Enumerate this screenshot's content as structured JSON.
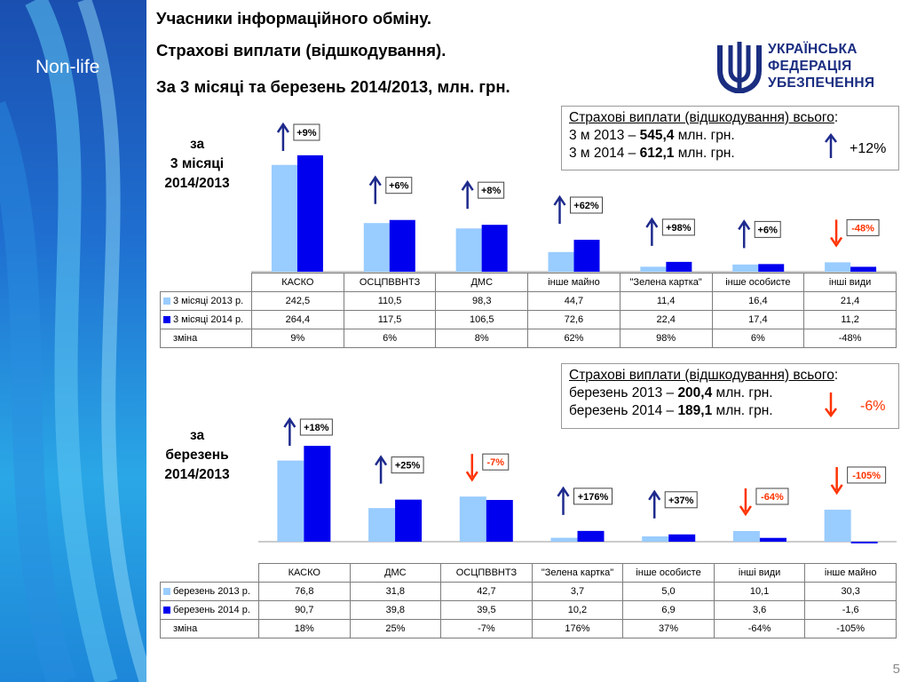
{
  "sidebar": {
    "title": "Non-life"
  },
  "header": {
    "line1": "Учасники інформаційного обміну.",
    "line2": "Страхові виплати (відшкодування).",
    "line3": "За 3 місяці та березень 2014/2013, млн. грн."
  },
  "logo": {
    "line1": "УКРАЇНСЬКА",
    "line2": "ФЕДЕРАЦІЯ",
    "line3": "УБЕЗПЕЧЕННЯ"
  },
  "colors": {
    "series_2013": "#99ccff",
    "series_2014": "#0000ee",
    "up": "#1e2a8c",
    "down": "#ff3300"
  },
  "page_number": "5",
  "chart_data": [
    {
      "type": "bar",
      "side_label": [
        "за",
        "3 місяці",
        "2014/2013"
      ],
      "categories": [
        "КАСКО",
        "ОСЦПВВНТЗ",
        "ДМС",
        "інше майно",
        "\"Зелена картка\"",
        "інше особисте",
        "інші види"
      ],
      "series": [
        {
          "name": "3 місяці 2013 р.",
          "values": [
            242.5,
            110.5,
            98.3,
            44.7,
            11.4,
            16.4,
            21.4
          ],
          "labels": [
            "242,5",
            "110,5",
            "98,3",
            "44,7",
            "11,4",
            "16,4",
            "21,4"
          ]
        },
        {
          "name": "3 місяці 2014 р.",
          "values": [
            264.4,
            117.5,
            106.5,
            72.6,
            22.4,
            17.4,
            11.2
          ],
          "labels": [
            "264,4",
            "117,5",
            "106,5",
            "72,6",
            "22,4",
            "17,4",
            "11,2"
          ]
        }
      ],
      "change_label": "зміна",
      "change": [
        "9%",
        "6%",
        "8%",
        "62%",
        "98%",
        "6%",
        "-48%"
      ],
      "callouts": [
        "+9%",
        "+6%",
        "+8%",
        "+62%",
        "+98%",
        "+6%",
        "-48%"
      ],
      "summary": {
        "title": "Страхові виплати (відшкодування)  всього",
        "row1_label": "3 м 2013 – ",
        "row1_value": "545,4",
        "row1_unit": " млн. грн.",
        "row2_label": "3 м 2014 – ",
        "row2_value": "612,1",
        "row2_unit": " млн. грн.",
        "total_change": "+12%",
        "direction": "up"
      }
    },
    {
      "type": "bar",
      "side_label": [
        "за",
        "березень",
        "2014/2013"
      ],
      "categories": [
        "КАСКО",
        "ДМС",
        "ОСЦПВВНТЗ",
        "\"Зелена картка\"",
        "інше особисте",
        "інші види",
        "інше майно"
      ],
      "series": [
        {
          "name": "березень 2013 р.",
          "values": [
            76.8,
            31.8,
            42.7,
            3.7,
            5.0,
            10.1,
            30.3
          ],
          "labels": [
            "76,8",
            "31,8",
            "42,7",
            "3,7",
            "5,0",
            "10,1",
            "30,3"
          ]
        },
        {
          "name": "березень 2014 р.",
          "values": [
            90.7,
            39.8,
            39.5,
            10.2,
            6.9,
            3.6,
            -1.6
          ],
          "labels": [
            "90,7",
            "39,8",
            "39,5",
            "10,2",
            "6,9",
            "3,6",
            "-1,6"
          ]
        }
      ],
      "change_label": "зміна",
      "change": [
        "18%",
        "25%",
        "-7%",
        "176%",
        "37%",
        "-64%",
        "-105%"
      ],
      "callouts": [
        "+18%",
        "+25%",
        "-7%",
        "+176%",
        "+37%",
        "-64%",
        "-105%"
      ],
      "summary": {
        "title": "Страхові виплати (відшкодування)  всього",
        "row1_label": "березень 2013 – ",
        "row1_value": "200,4",
        "row1_unit": " млн. грн.",
        "row2_label": "березень 2014 – ",
        "row2_value": "189,1",
        "row2_unit": " млн. грн.",
        "total_change": "-6%",
        "direction": "down"
      }
    }
  ]
}
